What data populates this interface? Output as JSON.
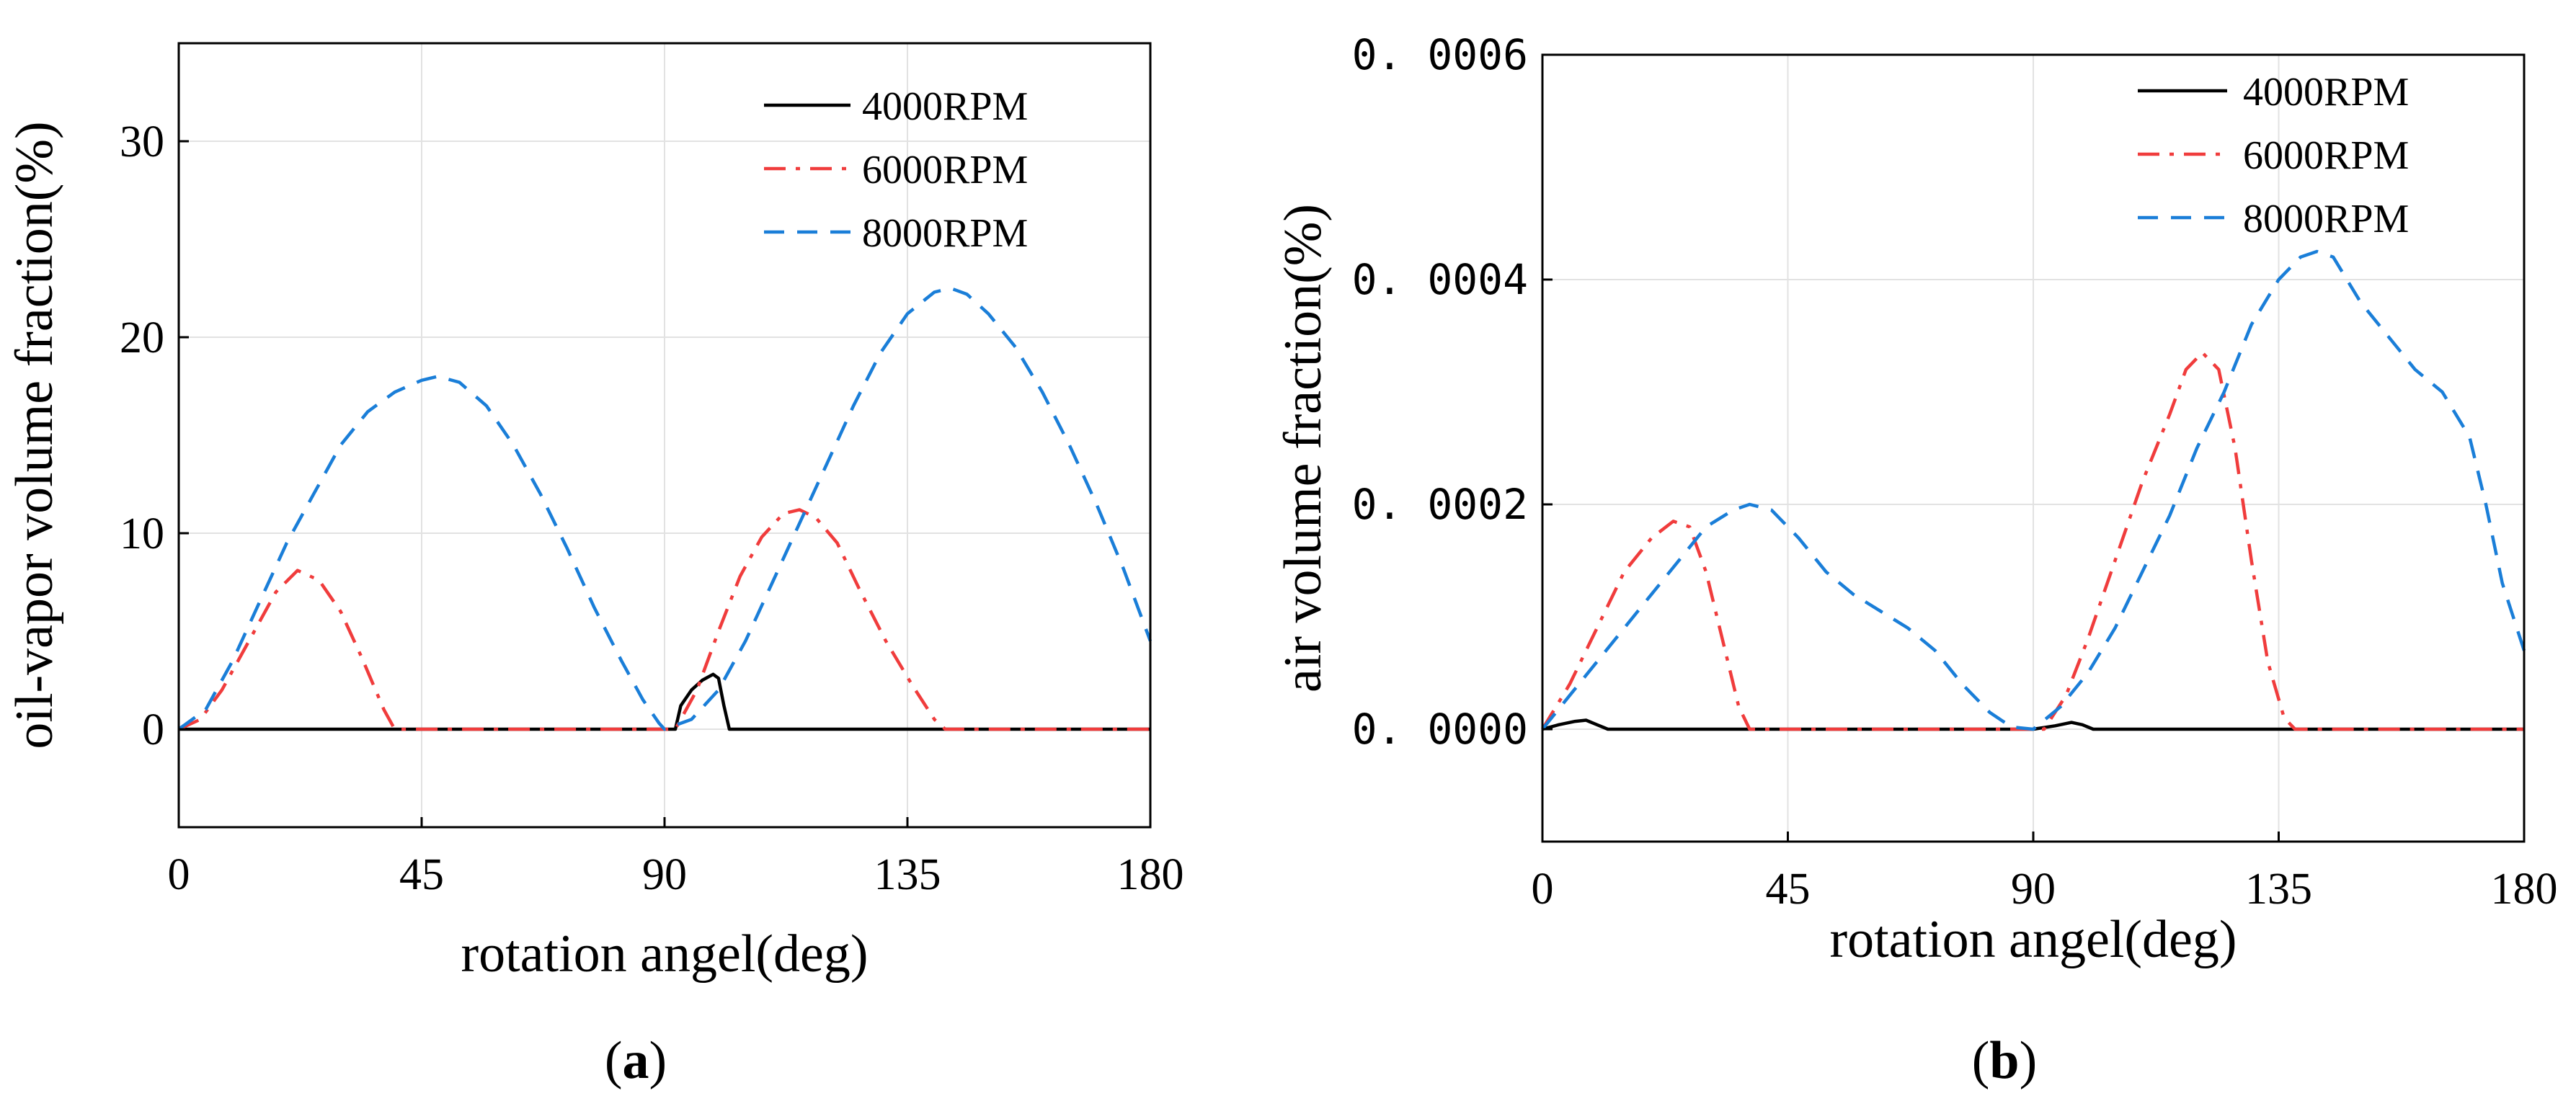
{
  "chart_data": [
    {
      "type": "line",
      "panel_label": "(a)",
      "panel_letter": "a",
      "title": "",
      "xlabel": "rotation angel(deg)",
      "ylabel": "oil-vapor volume fraction(%)",
      "xlim": [
        0,
        180
      ],
      "ylim": [
        -5,
        35
      ],
      "xticks": [
        0,
        45,
        90,
        135,
        180
      ],
      "yticks": [
        0,
        10,
        20,
        30
      ],
      "xtick_labels": [
        "0",
        "45",
        "90",
        "135",
        "180"
      ],
      "ytick_labels": [
        "0",
        "10",
        "20",
        "30"
      ],
      "grid": true,
      "legend_position": "top-right",
      "series": [
        {
          "name": "4000RPM",
          "color": "#000000",
          "dash": "solid",
          "points": [
            [
              0,
              0
            ],
            [
              90,
              0
            ],
            [
              92,
              0
            ],
            [
              93,
              1.2
            ],
            [
              95,
              2.0
            ],
            [
              97,
              2.5
            ],
            [
              99,
              2.8
            ],
            [
              100,
              2.6
            ],
            [
              101,
              1.2
            ],
            [
              102,
              0
            ],
            [
              180,
              0
            ]
          ]
        },
        {
          "name": "6000RPM",
          "color": "#f03c3c",
          "dash": "dashdot",
          "points": [
            [
              0,
              0
            ],
            [
              4,
              0.5
            ],
            [
              8,
              2
            ],
            [
              13,
              4.5
            ],
            [
              18,
              7
            ],
            [
              22,
              8.1
            ],
            [
              26,
              7.6
            ],
            [
              30,
              6
            ],
            [
              34,
              3.6
            ],
            [
              38,
              1
            ],
            [
              40,
              0
            ],
            [
              90,
              0
            ],
            [
              92,
              0
            ],
            [
              96,
              2
            ],
            [
              100,
              5
            ],
            [
              104,
              7.8
            ],
            [
              108,
              9.8
            ],
            [
              112,
              11
            ],
            [
              115,
              11.2
            ],
            [
              118,
              10.8
            ],
            [
              122,
              9.5
            ],
            [
              126,
              7.2
            ],
            [
              131,
              4.5
            ],
            [
              136,
              2.2
            ],
            [
              140,
              0.5
            ],
            [
              142,
              0
            ],
            [
              180,
              0
            ]
          ]
        },
        {
          "name": "8000RPM",
          "color": "#1a7ed8",
          "dash": "dashed",
          "points": [
            [
              0,
              0
            ],
            [
              5,
              1
            ],
            [
              10,
              3.5
            ],
            [
              15,
              6.5
            ],
            [
              20,
              9.5
            ],
            [
              25,
              12
            ],
            [
              30,
              14.5
            ],
            [
              35,
              16.2
            ],
            [
              40,
              17.2
            ],
            [
              45,
              17.8
            ],
            [
              48,
              18.0
            ],
            [
              52,
              17.7
            ],
            [
              57,
              16.5
            ],
            [
              62,
              14.5
            ],
            [
              67,
              12
            ],
            [
              72,
              9.2
            ],
            [
              77,
              6.2
            ],
            [
              82,
              3.5
            ],
            [
              86,
              1.5
            ],
            [
              89,
              0.3
            ],
            [
              90,
              0
            ],
            [
              95,
              0.5
            ],
            [
              100,
              2
            ],
            [
              105,
              4.5
            ],
            [
              110,
              7.5
            ],
            [
              115,
              10.5
            ],
            [
              120,
              13.5
            ],
            [
              125,
              16.5
            ],
            [
              130,
              19.2
            ],
            [
              135,
              21.2
            ],
            [
              140,
              22.3
            ],
            [
              143,
              22.5
            ],
            [
              146,
              22.2
            ],
            [
              150,
              21.2
            ],
            [
              155,
              19.5
            ],
            [
              160,
              17.2
            ],
            [
              165,
              14.5
            ],
            [
              170,
              11.5
            ],
            [
              175,
              8.2
            ],
            [
              180,
              4.5
            ]
          ]
        }
      ]
    },
    {
      "type": "line",
      "panel_label": "(b)",
      "panel_letter": "b",
      "title": "",
      "xlabel": "rotation angel(deg)",
      "ylabel": "air volume fraction(%)",
      "xlim": [
        0,
        180
      ],
      "ylim": [
        -0.0001,
        0.0006
      ],
      "xticks": [
        0,
        45,
        90,
        135,
        180
      ],
      "yticks": [
        0,
        0.0002,
        0.0004,
        0.0006
      ],
      "xtick_labels": [
        "0",
        "45",
        "90",
        "135",
        "180"
      ],
      "ytick_labels": [
        "0. 0000",
        "0. 0002",
        "0. 0004",
        "0. 0006"
      ],
      "grid": true,
      "legend_position": "top-right",
      "series": [
        {
          "name": "4000RPM",
          "color": "#000000",
          "dash": "solid",
          "points": [
            [
              0,
              0
            ],
            [
              3,
              4e-06
            ],
            [
              6,
              7e-06
            ],
            [
              8,
              8e-06
            ],
            [
              10,
              4e-06
            ],
            [
              12,
              0
            ],
            [
              90,
              0
            ],
            [
              94,
              3e-06
            ],
            [
              97,
              6e-06
            ],
            [
              99,
              4e-06
            ],
            [
              101,
              0
            ],
            [
              180,
              0
            ]
          ]
        },
        {
          "name": "6000RPM",
          "color": "#f03c3c",
          "dash": "dashdot",
          "points": [
            [
              0,
              0
            ],
            [
              5,
              4e-05
            ],
            [
              10,
              9e-05
            ],
            [
              15,
              0.00014
            ],
            [
              20,
              0.00017
            ],
            [
              24,
              0.000185
            ],
            [
              27,
              0.00018
            ],
            [
              30,
              0.00014
            ],
            [
              33,
              8e-05
            ],
            [
              36,
              2e-05
            ],
            [
              38,
              0
            ],
            [
              90,
              0
            ],
            [
              92,
              0
            ],
            [
              96,
              3e-05
            ],
            [
              100,
              8e-05
            ],
            [
              105,
              0.00015
            ],
            [
              110,
              0.00022
            ],
            [
              115,
              0.00028
            ],
            [
              118,
              0.00032
            ],
            [
              121,
              0.000335
            ],
            [
              124,
              0.00032
            ],
            [
              127,
              0.00025
            ],
            [
              130,
              0.00015
            ],
            [
              133,
              6e-05
            ],
            [
              136,
              1e-05
            ],
            [
              138,
              0
            ],
            [
              180,
              0
            ]
          ]
        },
        {
          "name": "8000RPM",
          "color": "#1a7ed8",
          "dash": "dashed",
          "points": [
            [
              0,
              0
            ],
            [
              5,
              3e-05
            ],
            [
              10,
              6e-05
            ],
            [
              15,
              9e-05
            ],
            [
              20,
              0.00012
            ],
            [
              25,
              0.00015
            ],
            [
              30,
              0.00018
            ],
            [
              35,
              0.000195
            ],
            [
              38,
              0.0002
            ],
            [
              42,
              0.000195
            ],
            [
              47,
              0.00017
            ],
            [
              52,
              0.00014
            ],
            [
              57,
              0.00012
            ],
            [
              62,
              0.000105
            ],
            [
              67,
              9e-05
            ],
            [
              72,
              7e-05
            ],
            [
              77,
              4e-05
            ],
            [
              82,
              1.5e-05
            ],
            [
              86,
              2e-06
            ],
            [
              90,
              0
            ],
            [
              95,
              2e-05
            ],
            [
              100,
              5e-05
            ],
            [
              105,
              9e-05
            ],
            [
              110,
              0.00014
            ],
            [
              115,
              0.00019
            ],
            [
              120,
              0.00025
            ],
            [
              125,
              0.0003
            ],
            [
              130,
              0.00036
            ],
            [
              135,
              0.0004
            ],
            [
              139,
              0.00042
            ],
            [
              142,
              0.000425
            ],
            [
              145,
              0.00042
            ],
            [
              150,
              0.00038
            ],
            [
              155,
              0.00035
            ],
            [
              160,
              0.00032
            ],
            [
              165,
              0.0003
            ],
            [
              170,
              0.00026
            ],
            [
              173,
              0.0002
            ],
            [
              176,
              0.00013
            ],
            [
              180,
              7e-05
            ]
          ]
        }
      ]
    }
  ]
}
